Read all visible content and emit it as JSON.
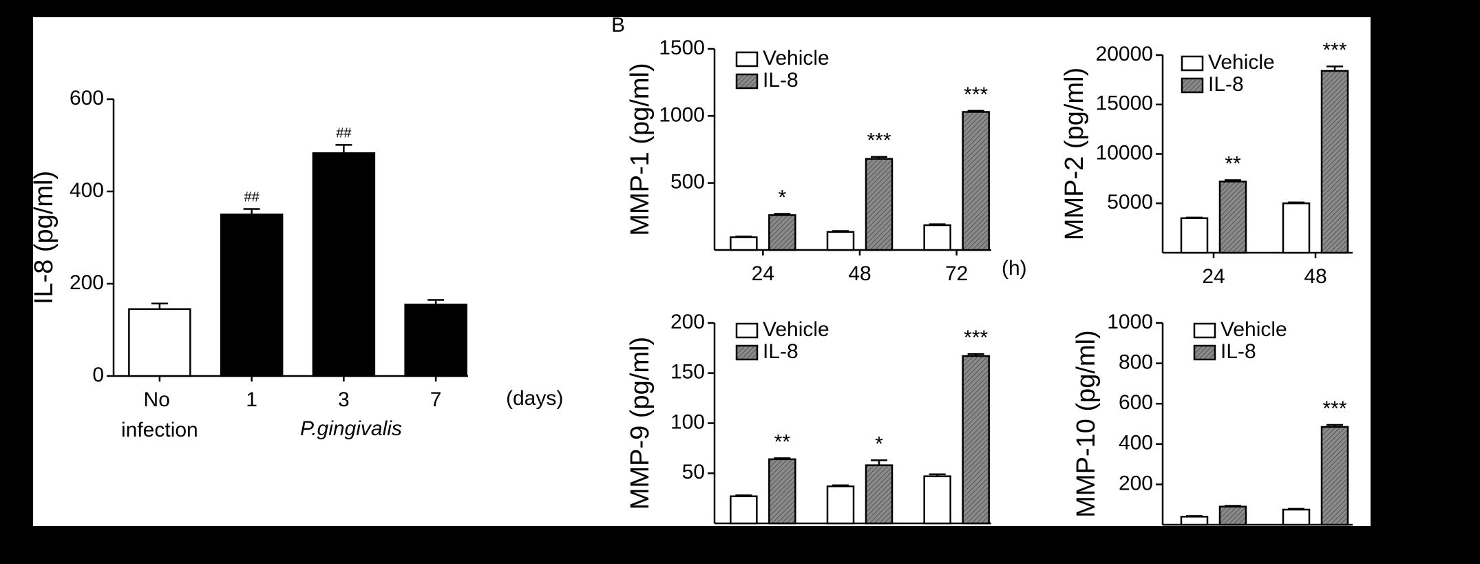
{
  "chart_data": [
    {
      "type": "bar",
      "y_label": "IL-8 (pg/ml)",
      "categories": [
        "No infection",
        "1",
        "3",
        "7"
      ],
      "x_unit": "(days)",
      "x_label": "P.gingivalis",
      "values": [
        145,
        350,
        483,
        155
      ],
      "errors": [
        12,
        12,
        18,
        10
      ],
      "colors": [
        "#ffffff",
        "#000000",
        "#000000",
        "#000000"
      ],
      "annotations": [
        null,
        "##",
        "##",
        null
      ],
      "ylim": [
        0,
        600
      ],
      "yticks": [
        0,
        200,
        400,
        600
      ]
    },
    {
      "type": "grouped-bar",
      "panel_label": "B",
      "y_label": "MMP-1 (pg/ml)",
      "categories": [
        "24",
        "48",
        "72"
      ],
      "x_unit": "(h)",
      "series": [
        {
          "name": "Vehicle",
          "color": "#ffffff",
          "hatch": false,
          "values": [
            95,
            135,
            185
          ],
          "errors": [
            5,
            6,
            7
          ]
        },
        {
          "name": "IL-8",
          "color": "#8a8a8a",
          "hatch": true,
          "values": [
            260,
            680,
            1030
          ],
          "errors": [
            10,
            15,
            8
          ]
        }
      ],
      "annotations": [
        "*",
        "***",
        "***"
      ],
      "ylim": [
        0,
        1500
      ],
      "yticks": [
        500,
        1000,
        1500
      ]
    },
    {
      "type": "grouped-bar",
      "y_label": "MMP-2 (pg/ml)",
      "categories": [
        "24",
        "48"
      ],
      "series": [
        {
          "name": "Vehicle",
          "color": "#ffffff",
          "hatch": false,
          "values": [
            3500,
            5000
          ],
          "errors": [
            60,
            100
          ]
        },
        {
          "name": "IL-8",
          "color": "#8a8a8a",
          "hatch": true,
          "values": [
            7200,
            18400
          ],
          "errors": [
            150,
            450
          ]
        }
      ],
      "annotations": [
        "**",
        "***"
      ],
      "ylim": [
        0,
        20000
      ],
      "yticks": [
        5000,
        10000,
        15000,
        20000
      ]
    },
    {
      "type": "grouped-bar",
      "y_label": "MMP-9 (pg/ml)",
      "categories": [
        null,
        null,
        null
      ],
      "series": [
        {
          "name": "Vehicle",
          "color": "#ffffff",
          "hatch": false,
          "values": [
            27,
            37,
            47
          ],
          "errors": [
            1,
            1,
            2
          ]
        },
        {
          "name": "IL-8",
          "color": "#8a8a8a",
          "hatch": true,
          "values": [
            64,
            58,
            167
          ],
          "errors": [
            1,
            5,
            2
          ]
        }
      ],
      "annotations": [
        "**",
        "*",
        "***"
      ],
      "ylim": [
        0,
        200
      ],
      "yticks": [
        50,
        100,
        150,
        200
      ]
    },
    {
      "type": "grouped-bar",
      "y_label": "MMP-10 (pg/ml)",
      "categories": [
        null,
        null
      ],
      "series": [
        {
          "name": "Vehicle",
          "color": "#ffffff",
          "hatch": false,
          "values": [
            40,
            75
          ],
          "errors": [
            3,
            4
          ]
        },
        {
          "name": "IL-8",
          "color": "#8a8a8a",
          "hatch": true,
          "values": [
            90,
            485
          ],
          "errors": [
            4,
            10
          ]
        }
      ],
      "annotations": [
        null,
        "***"
      ],
      "ylim": [
        0,
        1000
      ],
      "yticks": [
        200,
        400,
        600,
        800,
        1000
      ]
    }
  ]
}
